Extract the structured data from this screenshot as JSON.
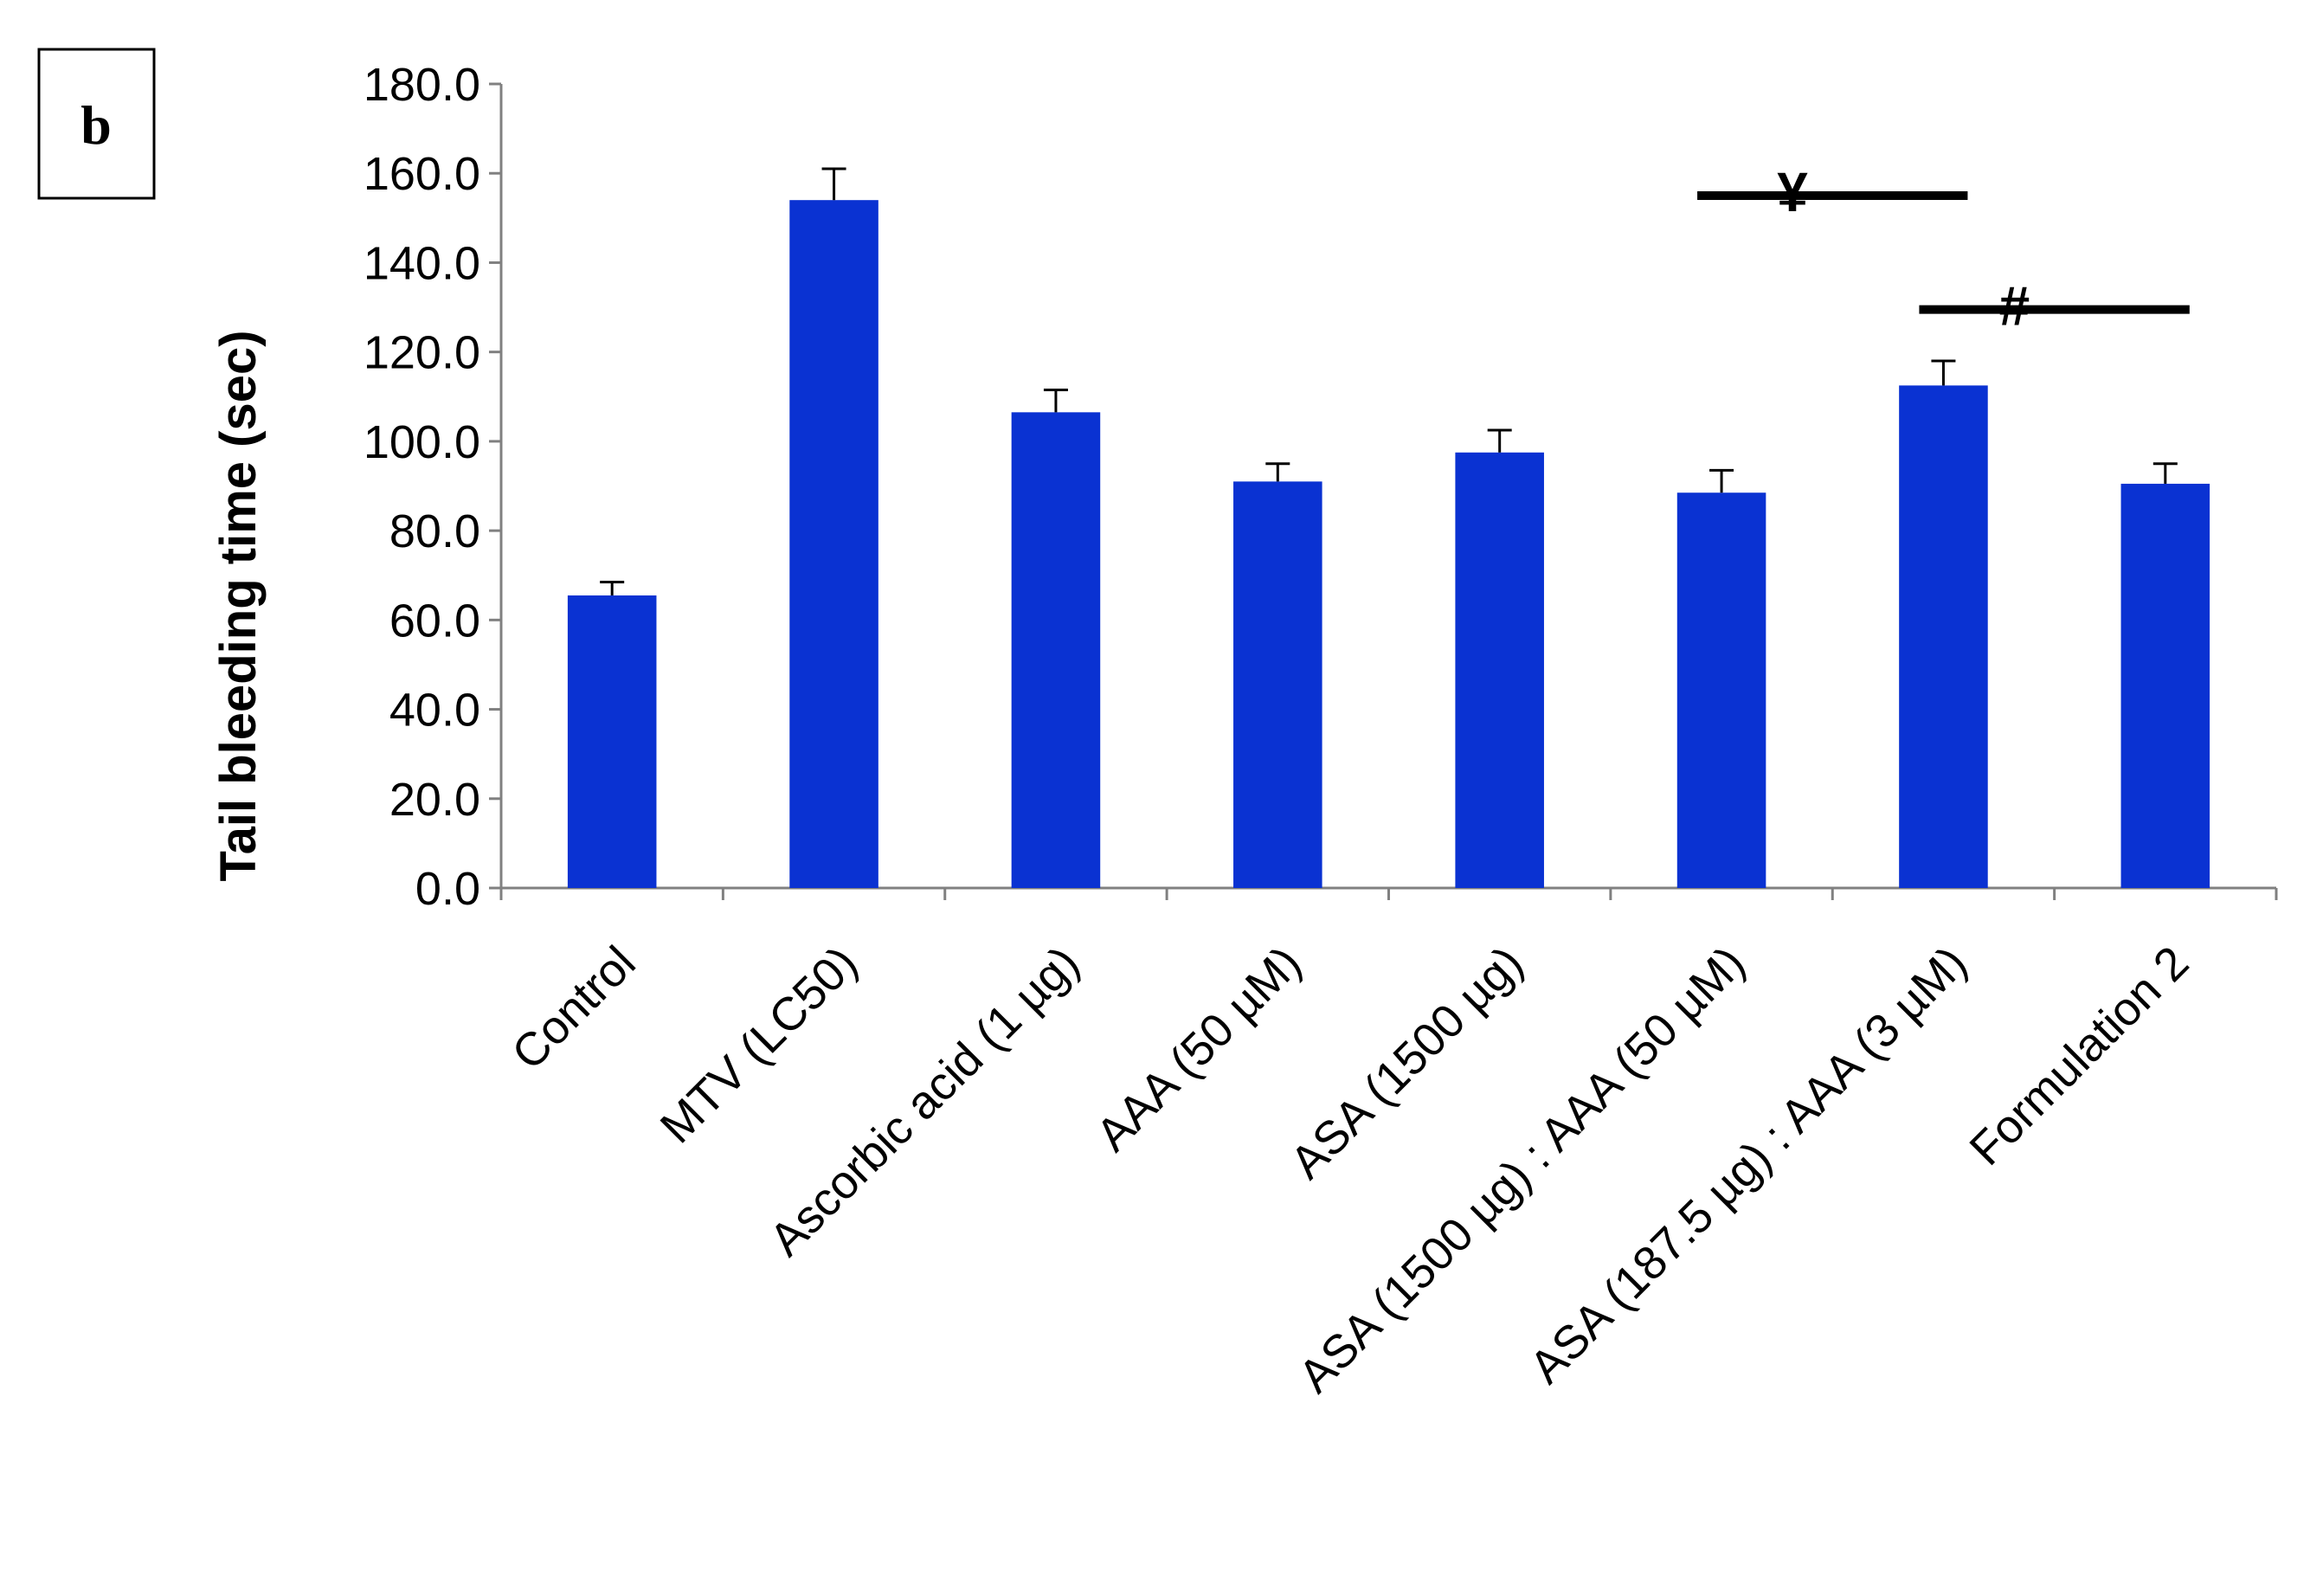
{
  "panel_label": "b",
  "chart_data": {
    "type": "bar",
    "title": "",
    "xlabel": "",
    "ylabel": "Tail bleeding time (sec)",
    "ylim": [
      0,
      180
    ],
    "ytick_step": 20,
    "ytick_labels": [
      "0.0",
      "20.0",
      "40.0",
      "60.0",
      "80.0",
      "100.0",
      "120.0",
      "140.0",
      "160.0",
      "180.0"
    ],
    "categories": [
      "Control",
      "MTV (LC50)",
      "Ascorbic acid (1 µg)",
      "AAA (50 µM)",
      "ASA (1500 µg)",
      "ASA (1500 µg) : AAA (50 µM)",
      "ASA (187.5 µg) : AAA (3 µM)",
      "Formulation 2"
    ],
    "values": [
      65.5,
      154,
      106.5,
      91,
      97.5,
      88.5,
      112.5,
      90.5
    ],
    "errors": [
      3,
      7,
      5,
      4,
      5,
      5,
      5.5,
      4.5
    ],
    "bar_color": "#0a32d2",
    "grid": false,
    "significance": [
      {
        "symbol": "¥",
        "from_category": 5,
        "to_category": 6,
        "y": 155
      },
      {
        "symbol": "#",
        "from_category": 6,
        "to_category": 7,
        "y": 129.5
      }
    ]
  }
}
